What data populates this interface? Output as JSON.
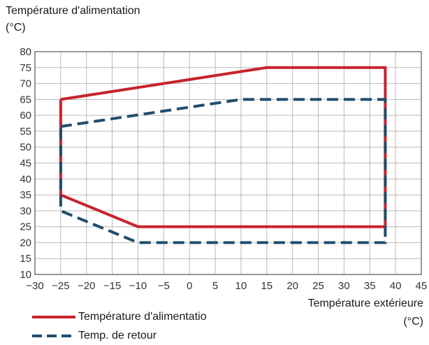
{
  "chart_data": {
    "type": "line",
    "ylabel": [
      "Température d'alimentation",
      "(°C)"
    ],
    "xlabel": [
      "Température extérieure",
      "(°C)"
    ],
    "xlim": [
      -30,
      45
    ],
    "ylim": [
      10,
      80
    ],
    "x_ticks": [
      "−30",
      "−25",
      "−20",
      "−15",
      "−10",
      "−5",
      "0",
      "5",
      "10",
      "15",
      "20",
      "25",
      "30",
      "35",
      "40",
      "45"
    ],
    "y_ticks": [
      "10",
      "15",
      "20",
      "25",
      "30",
      "35",
      "40",
      "45",
      "50",
      "55",
      "60",
      "65",
      "70",
      "75",
      "80"
    ],
    "grid": true,
    "legend_position": "bottom-left",
    "series": [
      {
        "name": "Température d'alimentatio",
        "color": "#c8232c",
        "style": "solid",
        "points": [
          [
            -25,
            65
          ],
          [
            15,
            75
          ],
          [
            38,
            75
          ],
          [
            38,
            25
          ],
          [
            -10,
            25
          ],
          [
            -25,
            35
          ],
          [
            -25,
            65
          ]
        ]
      },
      {
        "name": "Temp. de retour",
        "color": "#1f4e6e",
        "style": "dashed",
        "points": [
          [
            -25,
            56.5
          ],
          [
            10,
            65
          ],
          [
            38,
            65
          ],
          [
            38,
            20
          ],
          [
            -10,
            20
          ],
          [
            -25,
            30
          ],
          [
            -25,
            56.5
          ]
        ]
      }
    ]
  }
}
